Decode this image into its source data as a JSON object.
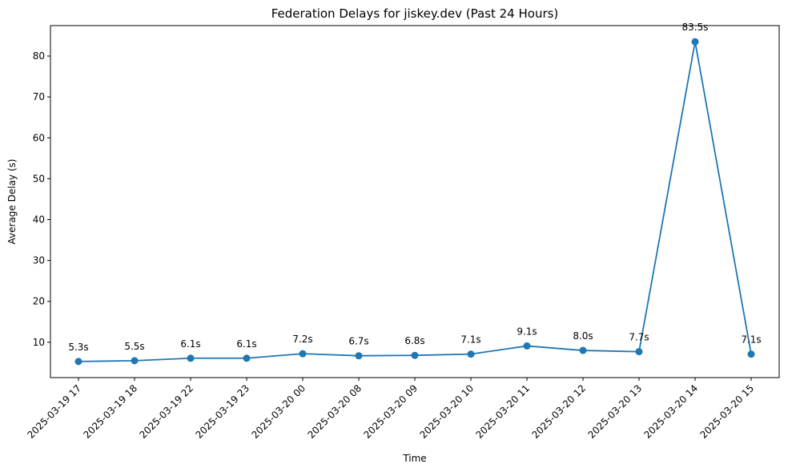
{
  "chart_data": {
    "type": "line",
    "title": "Federation Delays for jiskey.dev (Past 24 Hours)",
    "xlabel": "Time",
    "ylabel": "Average Delay (s)",
    "x": [
      "2025-03-19 17",
      "2025-03-19 18",
      "2025-03-19 22",
      "2025-03-19 23",
      "2025-03-20 00",
      "2025-03-20 08",
      "2025-03-20 09",
      "2025-03-20 10",
      "2025-03-20 11",
      "2025-03-20 12",
      "2025-03-20 13",
      "2025-03-20 14",
      "2025-03-20 15"
    ],
    "series": [
      {
        "values": [
          5.3,
          5.5,
          6.1,
          6.1,
          7.2,
          6.7,
          6.8,
          7.1,
          9.1,
          8.0,
          7.7,
          83.5,
          7.1
        ],
        "point_labels": [
          "5.3s",
          "5.5s",
          "6.1s",
          "6.1s",
          "7.2s",
          "6.7s",
          "6.8s",
          "7.1s",
          "9.1s",
          "8.0s",
          "7.7s",
          "83.5s",
          "7.1s"
        ],
        "color": "#1f77b4",
        "marker": "circle"
      }
    ],
    "yticks": [
      10,
      20,
      30,
      40,
      50,
      60,
      70,
      80
    ],
    "ylim": [
      1.36,
      87.44
    ],
    "grid": false,
    "legend": "none"
  }
}
